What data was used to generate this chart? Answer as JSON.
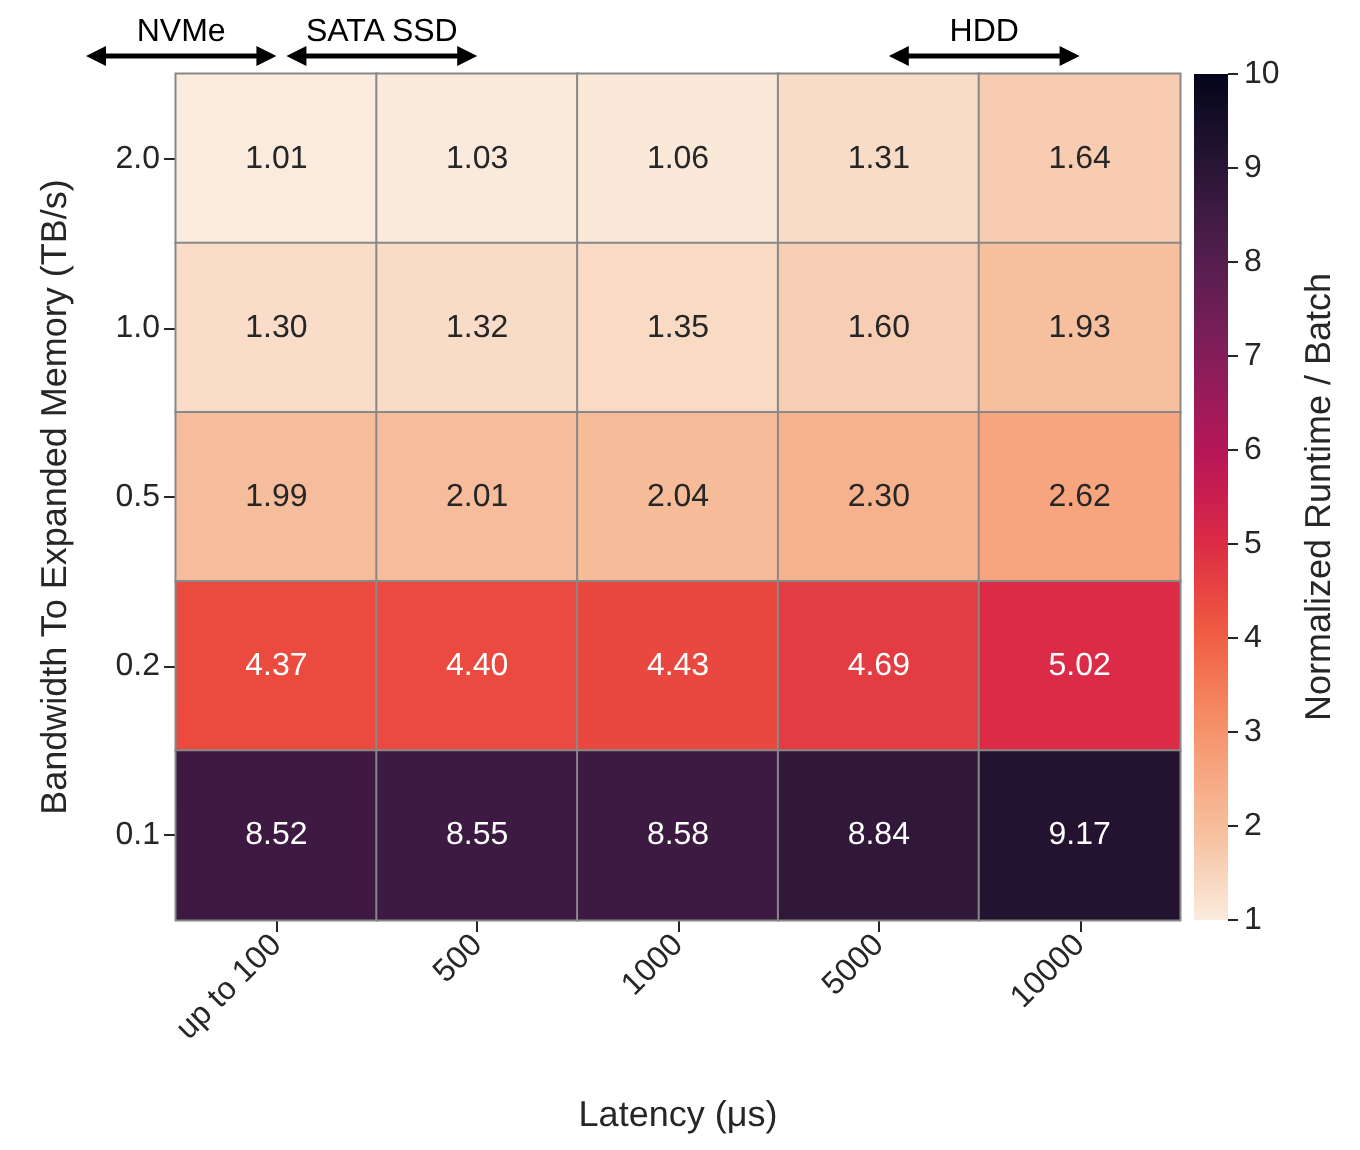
{
  "chart_data": {
    "type": "heatmap",
    "xlabel": "Latency (μs)",
    "ylabel": "Bandwidth To Expanded Memory (TB/s)",
    "clabel": "Normalized Runtime / Batch",
    "categories": [
      "up to 100",
      "500",
      "1000",
      "5000",
      "10000"
    ],
    "y_categories": [
      "2.0",
      "1.0",
      "0.5",
      "0.2",
      "0.1"
    ],
    "cells": [
      [
        1.01,
        1.03,
        1.06,
        1.31,
        1.64
      ],
      [
        1.3,
        1.32,
        1.35,
        1.6,
        1.93
      ],
      [
        1.99,
        2.01,
        2.04,
        2.3,
        2.62
      ],
      [
        4.37,
        4.4,
        4.43,
        4.69,
        5.02
      ],
      [
        8.52,
        8.55,
        8.58,
        8.84,
        9.17
      ]
    ],
    "cell_labels": [
      [
        "1.01",
        "1.03",
        "1.06",
        "1.31",
        "1.64"
      ],
      [
        "1.30",
        "1.32",
        "1.35",
        "1.60",
        "1.93"
      ],
      [
        "1.99",
        "2.01",
        "2.04",
        "2.30",
        "2.62"
      ],
      [
        "4.37",
        "4.40",
        "4.43",
        "4.69",
        "5.02"
      ],
      [
        "8.52",
        "8.55",
        "8.58",
        "8.84",
        "9.17"
      ]
    ],
    "clim": [
      1,
      10
    ],
    "cticks": [
      1,
      2,
      3,
      4,
      5,
      6,
      7,
      8,
      9,
      10
    ],
    "annotations": [
      "NVMe",
      "SATA SSD",
      "HDD"
    ]
  }
}
